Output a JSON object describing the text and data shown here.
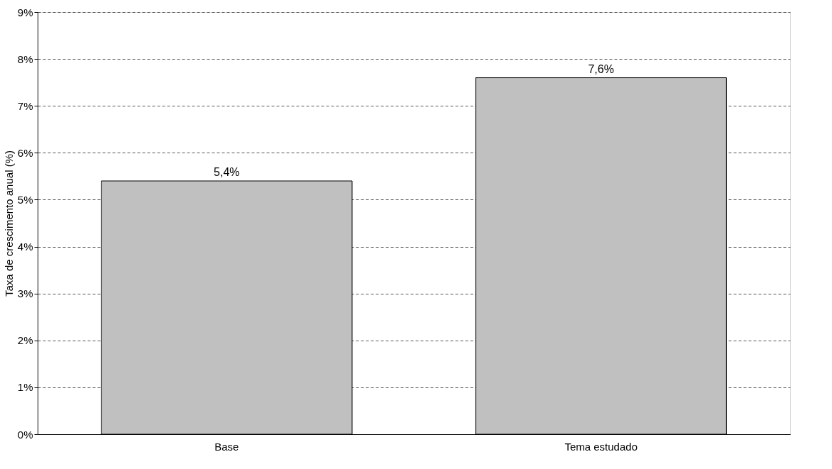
{
  "chart_data": {
    "type": "bar",
    "ylabel": "Taxa de crescimento anual (%)",
    "categories": [
      "Base",
      "Tema estudado"
    ],
    "values": [
      5.4,
      7.6
    ],
    "color": "#c0c0c0",
    "value_labels": [
      "5,4%",
      "7,6%"
    ],
    "ylim": [
      0,
      9
    ],
    "yticks": [
      {
        "value": 0,
        "label": "0%"
      },
      {
        "value": 1,
        "label": "1%"
      },
      {
        "value": 2,
        "label": "2%"
      },
      {
        "value": 3,
        "label": "3%"
      },
      {
        "value": 4,
        "label": "4%"
      },
      {
        "value": 5,
        "label": "5%"
      },
      {
        "value": 6,
        "label": "6%"
      },
      {
        "value": 7,
        "label": "7%"
      },
      {
        "value": 8,
        "label": "8%"
      },
      {
        "value": 9,
        "label": "9%"
      }
    ],
    "grid": "y"
  }
}
